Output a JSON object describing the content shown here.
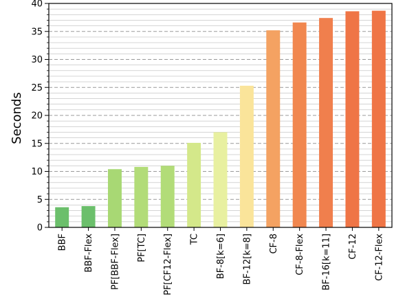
{
  "chart_data": {
    "type": "bar",
    "title": "",
    "xlabel": "",
    "ylabel": "Seconds",
    "ylim": [
      0,
      40
    ],
    "yticks": [
      0,
      5,
      10,
      15,
      20,
      25,
      30,
      35,
      40
    ],
    "minor_grid_step": 1,
    "grid": true,
    "categories": [
      "BBF",
      "BBF-Flex",
      "PF[BBF-Flex]",
      "PF[TC]",
      "PF[CF12-Flex]",
      "TC",
      "BF-8[k=6]",
      "BF-12[k=8]",
      "CF-8",
      "CF-8-Flex",
      "BF-16[k=11]",
      "CF-12",
      "CF-12-Flex"
    ],
    "values": [
      3.6,
      3.8,
      10.4,
      10.8,
      11.0,
      15.1,
      17.0,
      25.3,
      35.2,
      36.6,
      37.4,
      38.6,
      38.7
    ],
    "colors": [
      "#6bbf6b",
      "#6bbf6b",
      "#a8d874",
      "#b2dc78",
      "#b2dc78",
      "#d4e88a",
      "#e8f0a0",
      "#fae49a",
      "#f4a262",
      "#f1874f",
      "#f07f4d",
      "#ef7546",
      "#ef7546"
    ]
  }
}
